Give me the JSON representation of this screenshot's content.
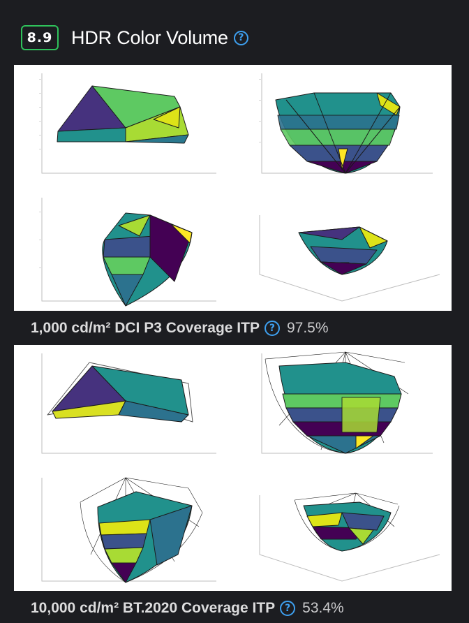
{
  "section": {
    "score": "8.9",
    "title": "HDR Color Volume",
    "help_icon": "question-circle-icon",
    "score_color": "#2fc25b",
    "accent_color": "#3ea0f0"
  },
  "measurements": [
    {
      "label": "1,000 cd/m² DCI P3 Coverage ITP",
      "value": "97.5%",
      "plot_colors": [
        "#440154",
        "#21918c",
        "#5ec962",
        "#fde725"
      ]
    },
    {
      "label": "10,000 cd/m² BT.2020 Coverage ITP",
      "value": "53.4%",
      "plot_colors": [
        "#440154",
        "#21918c",
        "#5ec962",
        "#fde725"
      ]
    }
  ]
}
